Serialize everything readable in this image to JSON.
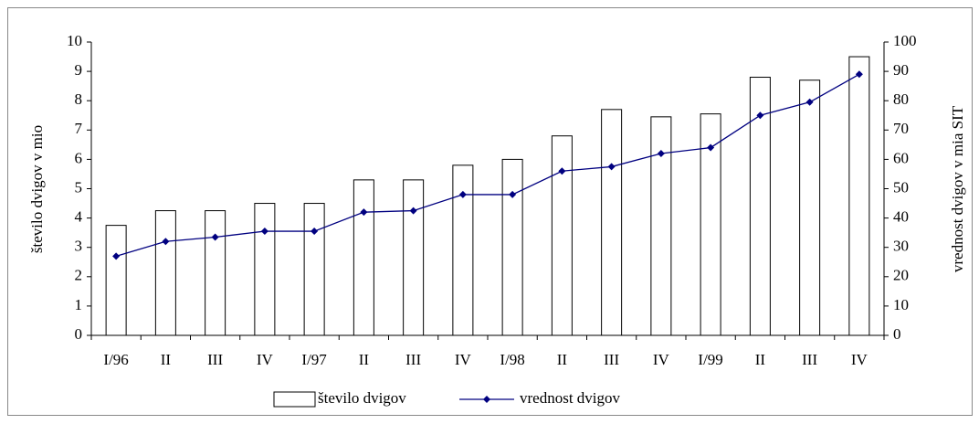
{
  "chart_data": {
    "type": "bar",
    "categories": [
      "I/96",
      "II",
      "III",
      "IV",
      "I/97",
      "II",
      "III",
      "IV",
      "I/98",
      "II",
      "III",
      "IV",
      "I/99",
      "II",
      "III",
      "IV"
    ],
    "series": [
      {
        "name": "število dvigov",
        "type": "bar",
        "color": "#ffffff",
        "values": [
          3.75,
          4.25,
          4.25,
          4.5,
          4.5,
          5.3,
          5.3,
          5.8,
          6.0,
          6.8,
          7.7,
          7.45,
          7.55,
          8.8,
          8.7,
          9.5
        ]
      },
      {
        "name": "vrednost dvigov",
        "type": "line",
        "axis": "y2",
        "color": "#000080",
        "values": [
          27,
          32,
          33.5,
          35.5,
          35.5,
          42,
          42.5,
          48,
          48,
          56,
          57.5,
          62,
          64,
          75,
          79.5,
          89
        ]
      }
    ],
    "y_label": "število dvigov v mio",
    "y2_label": "vrednost dvigov v mia SIT",
    "ylim": [
      0,
      10
    ],
    "yticks": [
      0,
      1,
      2,
      3,
      4,
      5,
      6,
      7,
      8,
      9,
      10
    ],
    "y2lim": [
      0,
      100
    ],
    "y2ticks": [
      0,
      10,
      20,
      30,
      40,
      50,
      60,
      70,
      80,
      90,
      100
    ],
    "grid": false,
    "legend": "bottom"
  }
}
